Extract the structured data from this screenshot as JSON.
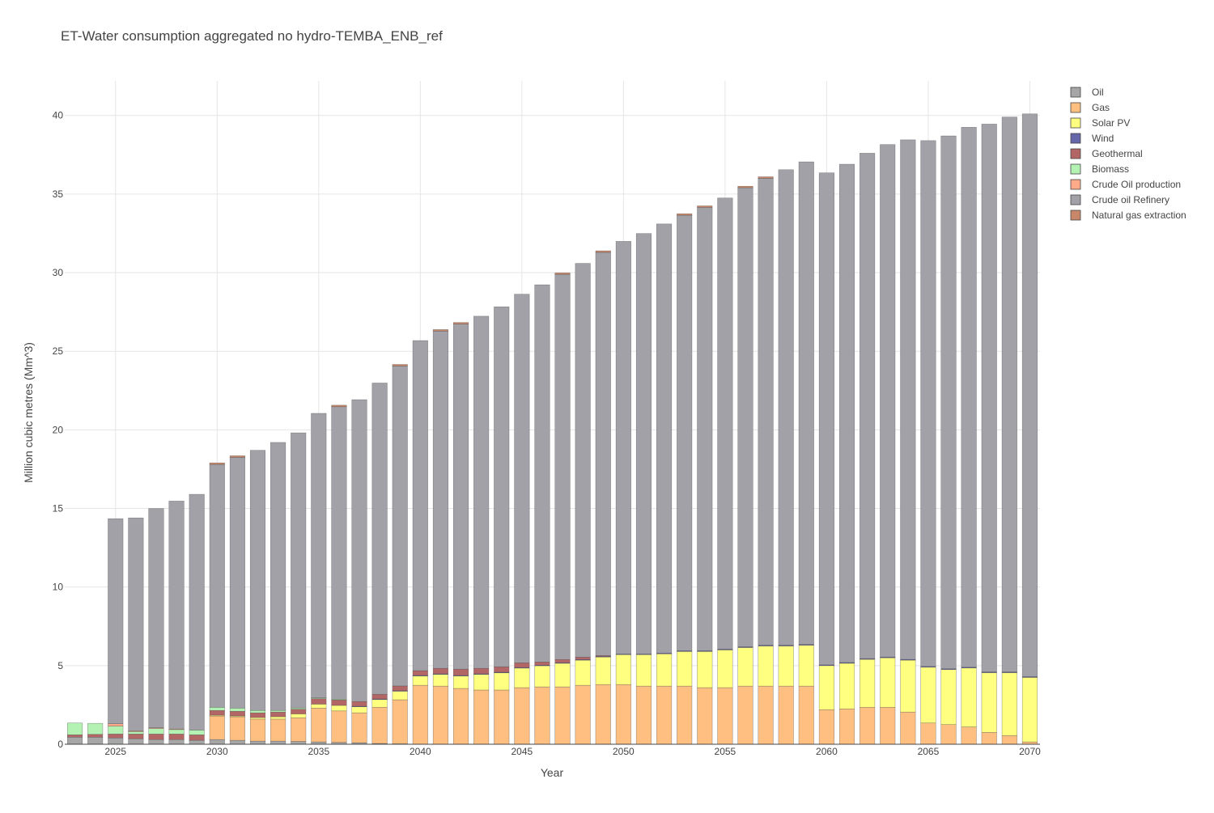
{
  "chart_data": {
    "type": "bar",
    "stacked": true,
    "title": "ET-Water consumption aggregated no hydro-TEMBA_ENB_ref",
    "xlabel": "Year",
    "ylabel": "Million cubic metres (Mm^3)",
    "xlim": [
      2022.5,
      2070.5
    ],
    "ylim": [
      0,
      42.2
    ],
    "x_ticks": [
      2025,
      2030,
      2035,
      2040,
      2045,
      2050,
      2055,
      2060,
      2065,
      2070
    ],
    "x_tick_labels": [
      "2025",
      "2030",
      "2035",
      "2040",
      "2045",
      "2050",
      "2055",
      "2060",
      "2065",
      "2070"
    ],
    "y_ticks": [
      0,
      5,
      10,
      15,
      20,
      25,
      30,
      35,
      40
    ],
    "y_tick_labels": [
      "0",
      "5",
      "10",
      "15",
      "20",
      "25",
      "30",
      "35",
      "40"
    ],
    "grid": true,
    "legend_position": "top-right",
    "categories": [
      2023,
      2024,
      2025,
      2026,
      2027,
      2028,
      2029,
      2030,
      2031,
      2032,
      2033,
      2034,
      2035,
      2036,
      2037,
      2038,
      2039,
      2040,
      2041,
      2042,
      2043,
      2044,
      2045,
      2046,
      2047,
      2048,
      2049,
      2050,
      2051,
      2052,
      2053,
      2054,
      2055,
      2056,
      2057,
      2058,
      2059,
      2060,
      2061,
      2062,
      2063,
      2064,
      2065,
      2066,
      2067,
      2068,
      2069,
      2070
    ],
    "series": [
      {
        "name": "Oil",
        "color": "#a6a6a6",
        "values": [
          0.45,
          0.45,
          0.4,
          0.35,
          0.3,
          0.3,
          0.25,
          0.3,
          0.25,
          0.2,
          0.2,
          0.18,
          0.15,
          0.12,
          0.1,
          0.05,
          0.03,
          0,
          0,
          0,
          0,
          0,
          0,
          0,
          0,
          0,
          0,
          0,
          0,
          0,
          0,
          0,
          0,
          0,
          0,
          0,
          0,
          0,
          0,
          0,
          0,
          0,
          0,
          0,
          0,
          0,
          0,
          0
        ]
      },
      {
        "name": "Gas",
        "color": "#ffbf80",
        "values": [
          0,
          0,
          0,
          0,
          0,
          0,
          0,
          1.5,
          1.5,
          1.4,
          1.4,
          1.5,
          2.15,
          2,
          1.9,
          2.3,
          2.8,
          3.75,
          3.7,
          3.55,
          3.45,
          3.45,
          3.6,
          3.65,
          3.65,
          3.75,
          3.8,
          3.8,
          3.7,
          3.7,
          3.7,
          3.6,
          3.6,
          3.7,
          3.7,
          3.7,
          3.7,
          2.2,
          2.25,
          2.35,
          2.35,
          2.05,
          1.35,
          1.25,
          1.1,
          0.75,
          0.55,
          0.15
        ]
      },
      {
        "name": "Solar PV",
        "color": "#ffff80",
        "values": [
          0,
          0,
          0,
          0,
          0,
          0,
          0,
          0.05,
          0.05,
          0.1,
          0.15,
          0.25,
          0.25,
          0.35,
          0.4,
          0.5,
          0.55,
          0.6,
          0.75,
          0.8,
          1.0,
          1.1,
          1.25,
          1.35,
          1.5,
          1.6,
          1.75,
          1.9,
          2.0,
          2.05,
          2.2,
          2.3,
          2.4,
          2.45,
          2.55,
          2.55,
          2.6,
          2.8,
          2.9,
          3.05,
          3.15,
          3.3,
          3.55,
          3.5,
          3.75,
          3.8,
          4.0,
          4.1
        ]
      },
      {
        "name": "Wind",
        "color": "#6666aa",
        "values": [
          0,
          0,
          0,
          0,
          0,
          0,
          0,
          0,
          0,
          0,
          0,
          0,
          0,
          0,
          0.02,
          0.03,
          0.03,
          0.03,
          0.03,
          0.03,
          0.03,
          0.03,
          0.03,
          0.03,
          0.04,
          0.04,
          0.04,
          0.04,
          0.04,
          0.05,
          0.05,
          0.05,
          0.05,
          0.05,
          0.05,
          0.05,
          0.05,
          0.05,
          0.05,
          0.05,
          0.05,
          0.05,
          0.05,
          0.05,
          0.05,
          0.05,
          0.05,
          0.05
        ]
      },
      {
        "name": "Geothermal",
        "color": "#b36666",
        "values": [
          0.15,
          0.18,
          0.25,
          0.3,
          0.35,
          0.35,
          0.35,
          0.3,
          0.3,
          0.3,
          0.3,
          0.3,
          0.35,
          0.35,
          0.3,
          0.3,
          0.3,
          0.3,
          0.35,
          0.4,
          0.35,
          0.35,
          0.3,
          0.2,
          0.2,
          0.15,
          0.05,
          0,
          0,
          0,
          0,
          0,
          0,
          0,
          0,
          0,
          0,
          0,
          0,
          0,
          0,
          0,
          0,
          0,
          0,
          0,
          0,
          0
        ]
      },
      {
        "name": "Biomass",
        "color": "#b3f2b3",
        "values": [
          0.75,
          0.7,
          0.5,
          0.15,
          0.35,
          0.3,
          0.3,
          0.2,
          0.2,
          0.15,
          0.1,
          0.08,
          0.05,
          0.05,
          0,
          0,
          0,
          0,
          0,
          0,
          0,
          0,
          0,
          0,
          0,
          0,
          0,
          0,
          0,
          0,
          0,
          0,
          0,
          0,
          0,
          0,
          0,
          0,
          0,
          0,
          0,
          0,
          0,
          0,
          0,
          0,
          0,
          0
        ]
      },
      {
        "name": "Crude Oil production",
        "color": "#ffaa88",
        "values": [
          0,
          0,
          0.15,
          0.05,
          0.05,
          0.02,
          0,
          0,
          0,
          0,
          0,
          0,
          0,
          0,
          0,
          0,
          0,
          0,
          0,
          0,
          0,
          0,
          0,
          0,
          0,
          0,
          0,
          0,
          0,
          0,
          0,
          0,
          0,
          0,
          0,
          0,
          0,
          0,
          0,
          0,
          0,
          0,
          0,
          0,
          0,
          0,
          0,
          0
        ]
      },
      {
        "name": "Crude oil Refinery",
        "color": "#a3a1a8",
        "values": [
          0,
          0,
          13.05,
          13.55,
          13.95,
          14.5,
          15.0,
          15.45,
          15.95,
          16.55,
          17.05,
          17.5,
          18.1,
          18.6,
          19.2,
          19.8,
          20.35,
          21.0,
          21.45,
          21.95,
          22.4,
          22.9,
          23.45,
          24.0,
          24.5,
          25.05,
          25.65,
          26.25,
          26.75,
          27.3,
          27.7,
          28.2,
          28.7,
          29.2,
          29.7,
          30.25,
          30.7,
          31.3,
          31.7,
          32.15,
          32.6,
          33.05,
          33.45,
          33.9,
          34.35,
          34.85,
          35.3,
          35.8
        ]
      },
      {
        "name": "Natural gas extraction",
        "color": "#c8876a",
        "values": [
          0,
          0,
          0,
          0,
          0,
          0,
          0,
          0.1,
          0.1,
          0,
          0,
          0,
          0,
          0.1,
          0,
          0,
          0.1,
          0,
          0.1,
          0.1,
          0,
          0,
          0,
          0,
          0.1,
          0,
          0.1,
          0,
          0,
          0,
          0.1,
          0.1,
          0,
          0.1,
          0.1,
          0,
          0,
          0,
          0,
          0,
          0,
          0,
          0,
          0,
          0,
          0,
          0,
          0
        ]
      }
    ]
  }
}
